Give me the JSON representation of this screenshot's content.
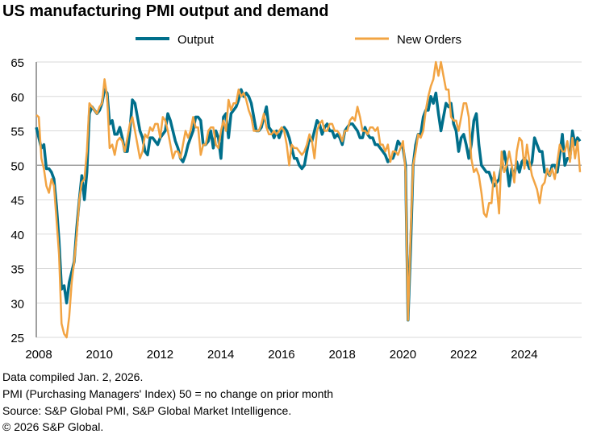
{
  "chart_data": {
    "type": "line",
    "title": "US manufacturing PMI output and demand",
    "x_start": "2008-01",
    "x_end": "2025-12",
    "frequency": "monthly",
    "x_ticks": [
      "2008",
      "2010",
      "2012",
      "2014",
      "2016",
      "2018",
      "2020",
      "2022",
      "2024"
    ],
    "y_ticks": [
      25,
      30,
      35,
      40,
      45,
      50,
      55,
      60,
      65
    ],
    "ylim": [
      25,
      65
    ],
    "reference_line": 50,
    "grid": true,
    "legend": "top",
    "series": [
      {
        "name": "Output",
        "color": "#006F8B",
        "values": [
          55.5,
          54,
          52.5,
          53,
          49.5,
          49.5,
          49,
          48,
          44,
          39,
          32,
          32.5,
          30,
          33,
          34.5,
          36,
          41,
          45,
          48.5,
          45,
          49,
          57.5,
          58.5,
          58,
          57.5,
          58,
          59,
          61,
          60.5,
          56,
          56.5,
          54.5,
          54.5,
          55.5,
          54,
          52,
          52,
          55,
          59.5,
          59,
          57,
          55,
          54,
          52,
          51.5,
          54,
          54,
          53.5,
          53,
          54,
          54.5,
          55,
          57.5,
          56.5,
          55,
          53.5,
          52.5,
          51,
          50.5,
          51.5,
          53,
          54,
          55,
          57,
          57,
          56.5,
          53,
          53,
          53.5,
          55,
          52.5,
          55,
          54,
          51,
          57,
          57.5,
          54,
          57.5,
          58,
          58.5,
          59.5,
          61,
          60,
          60.5,
          60,
          59,
          57,
          55,
          55,
          55.5,
          57,
          58.5,
          55.5,
          55,
          54,
          55,
          54,
          55,
          55.5,
          55,
          54,
          52.5,
          51,
          51,
          50,
          49.5,
          50,
          52,
          54,
          53.5,
          55,
          56.5,
          56,
          54.5,
          55.5,
          56,
          55,
          55,
          54,
          54.5,
          54,
          53,
          55,
          55.5,
          56,
          56,
          55.5,
          55,
          54,
          54,
          55.5,
          54.5,
          54,
          54,
          53,
          53,
          52.5,
          52,
          51.5,
          50.5,
          51,
          51,
          52,
          53.5,
          53,
          52.5,
          50,
          27.5,
          38,
          50,
          53,
          54.5,
          54.5,
          57,
          58,
          58,
          60,
          59,
          60.5,
          57.5,
          55,
          57,
          59,
          58.5,
          59,
          56,
          55,
          52,
          54,
          54.5,
          53,
          51,
          53,
          56.5,
          57.5,
          53,
          50,
          49.5,
          49,
          49,
          48,
          47,
          47.5,
          48,
          50,
          52,
          50,
          47,
          49.5,
          48.5,
          50.5,
          49,
          50.5,
          51,
          50.5,
          49.5,
          50.5,
          54,
          53,
          52,
          52,
          49,
          49,
          48.5,
          50,
          50,
          49,
          51.5,
          54.5,
          50,
          51,
          51,
          55,
          53,
          54,
          53.5
        ]
      },
      {
        "name": "New Orders",
        "color": "#F2A443",
        "values": [
          57.3,
          57,
          51,
          49.5,
          47,
          46,
          48,
          47,
          42,
          37,
          27,
          25.5,
          25,
          28,
          33,
          36,
          40,
          45,
          47.5,
          48,
          52,
          59,
          58.5,
          58,
          57.5,
          58.5,
          59,
          62.5,
          60,
          52.5,
          53,
          51.5,
          53.5,
          54,
          53.5,
          52,
          54,
          56,
          57,
          55,
          53,
          51,
          52,
          54.5,
          54,
          55.5,
          55,
          56,
          56,
          54,
          57,
          56.5,
          55,
          53,
          51,
          52,
          52,
          51,
          53,
          55,
          54,
          55,
          57,
          55.5,
          55.5,
          51.5,
          53,
          53,
          55,
          55.5,
          55.5,
          53,
          52.5,
          55,
          56.5,
          55,
          59.5,
          58,
          59,
          59,
          61,
          60,
          60.5,
          59.5,
          58,
          57,
          55,
          55,
          55,
          56,
          57.5,
          55.5,
          54.5,
          54.5,
          55,
          54.5,
          55,
          55.5,
          55,
          53,
          50,
          53,
          52.5,
          52.5,
          52,
          51.5,
          52,
          53,
          54.5,
          53.5,
          51,
          55,
          56,
          56.5,
          55,
          55,
          56,
          56,
          55,
          55,
          54.5,
          53.5,
          55,
          55,
          56.5,
          57,
          56.5,
          58.5,
          57,
          55,
          55,
          54.5,
          55.5,
          55.5,
          55,
          55.5,
          53,
          53,
          52,
          53,
          50.5,
          52,
          52,
          51.5,
          52.5,
          53.5,
          49,
          27.5,
          40,
          50,
          52,
          54.5,
          54,
          55,
          58,
          60,
          61.5,
          62.5,
          65,
          63,
          65,
          63,
          61,
          61,
          57,
          56.5,
          56.5,
          55,
          57,
          59,
          59,
          57,
          51,
          49,
          49.5,
          48.5,
          46,
          43,
          42.5,
          44.5,
          44.5,
          49,
          47,
          43,
          52,
          49,
          50,
          52,
          50,
          47.5,
          52,
          54,
          53.5,
          49.5,
          53,
          50.5,
          48.5,
          47.5,
          46.5,
          44.5,
          47,
          47.5,
          49.5,
          48.5,
          49.5,
          48,
          50.5,
          53,
          52,
          52,
          53.5,
          50.5,
          54,
          51,
          53.5,
          49
        ]
      }
    ]
  },
  "footnotes": [
    "Data compiled Jan. 2, 2026.",
    "PMI (Purchasing Managers' Index) 50 = no change on prior month",
    "Source: S&P Global PMI, S&P Global Market Intelligence.",
    "© 2026 S&P Global."
  ]
}
